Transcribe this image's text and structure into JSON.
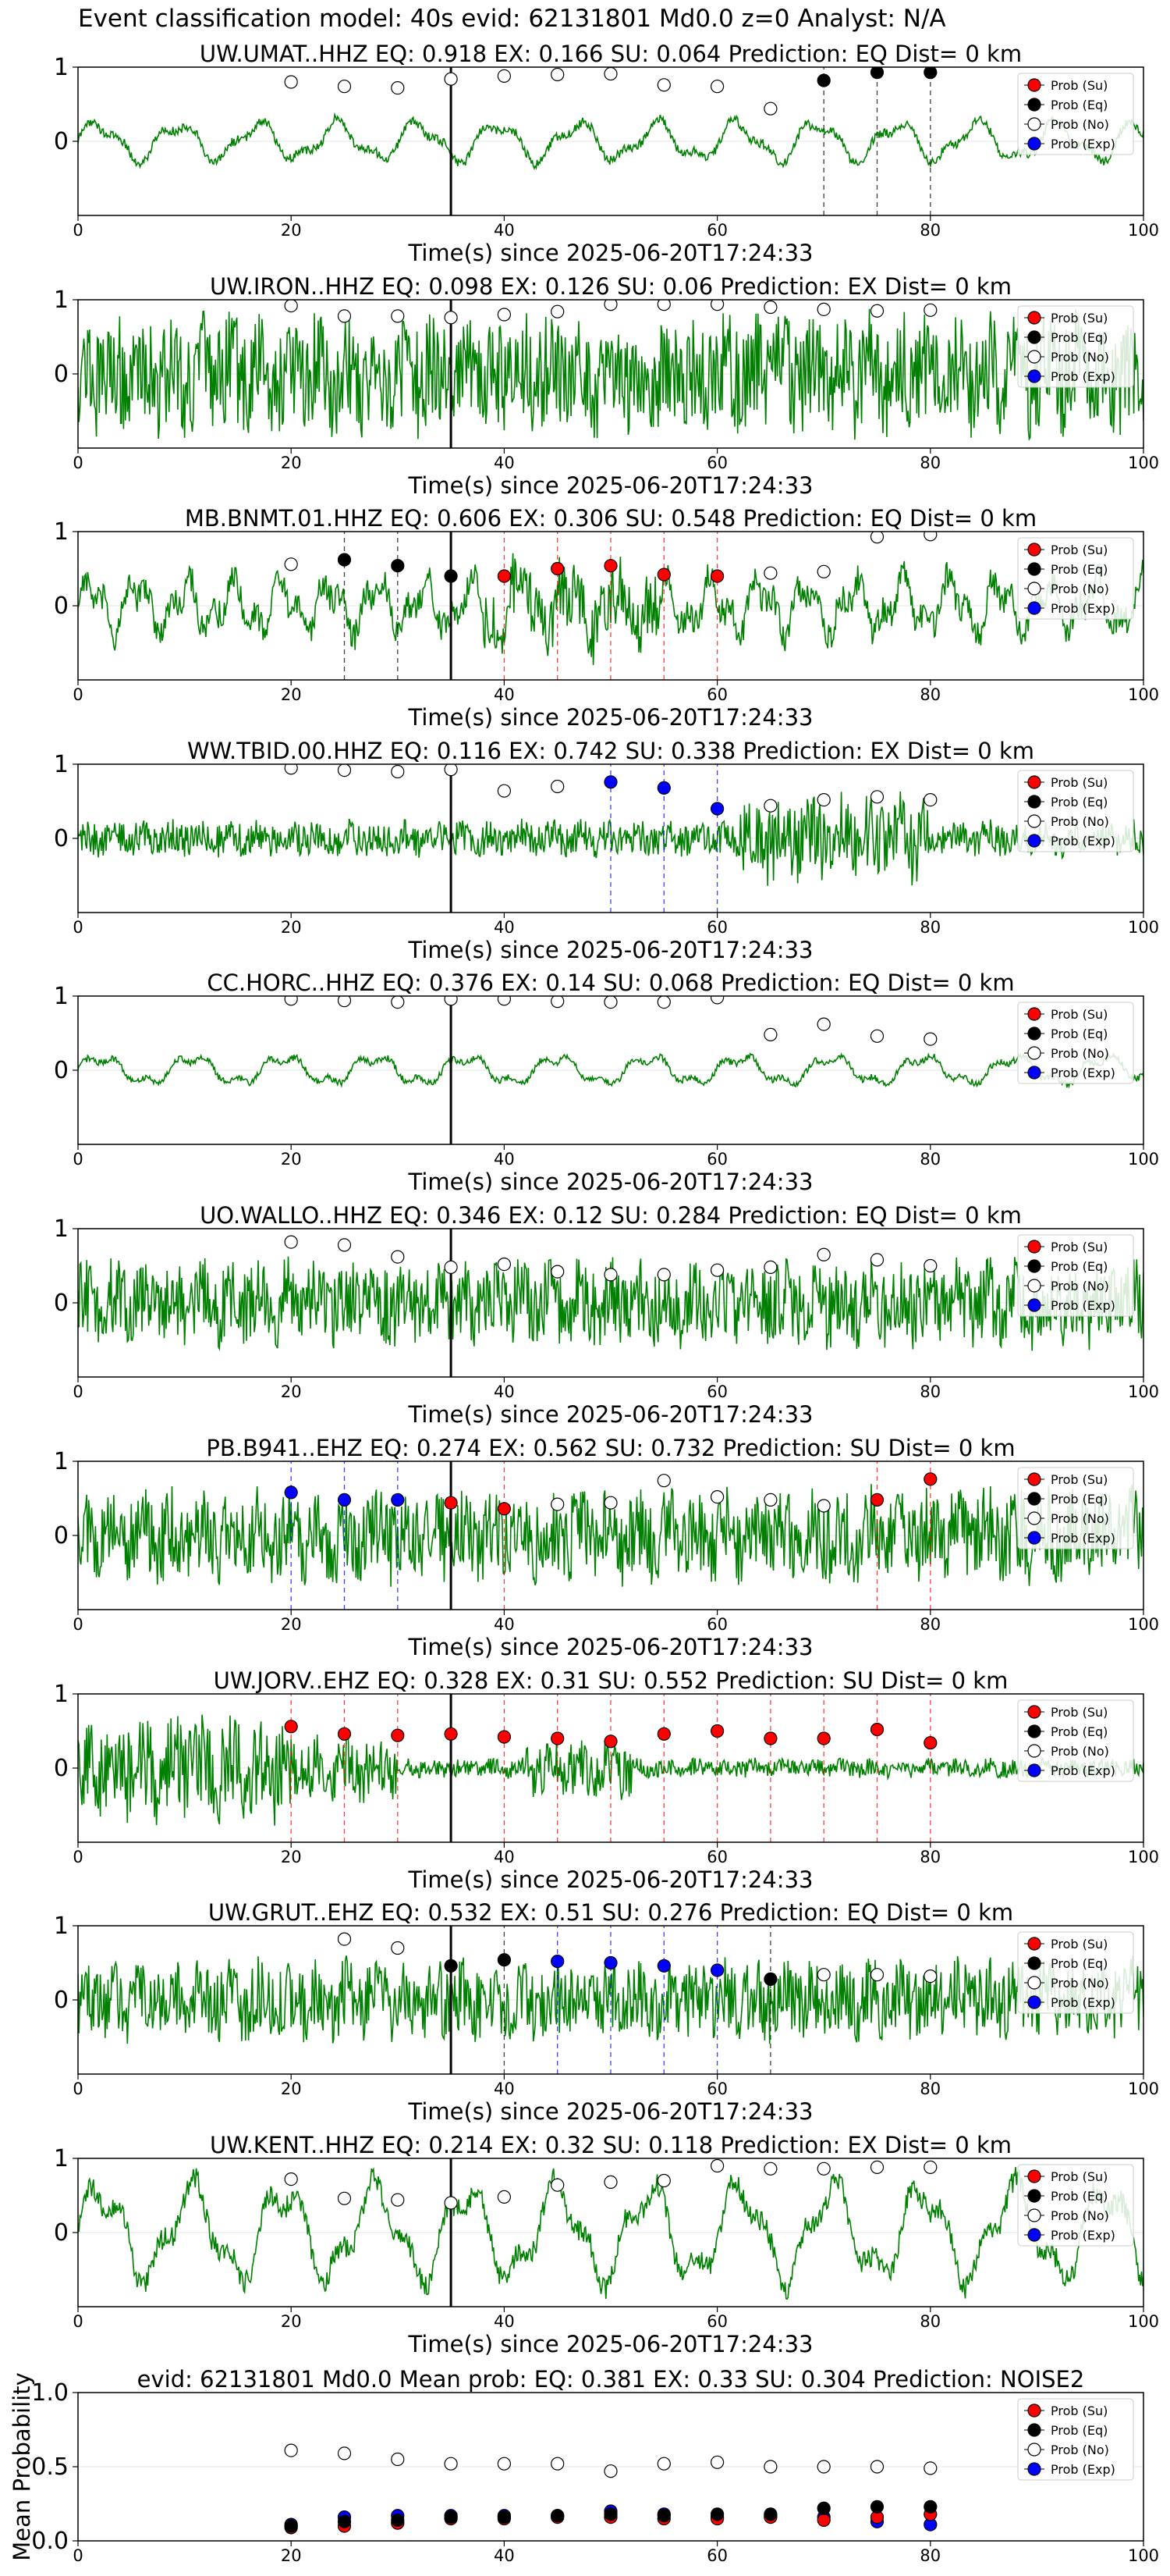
{
  "figure": {
    "suptitle": "Event classification model: 40s evid: 62131801 Md0.0 z=0 Analyst: N/A",
    "xlabel": "Time(s) since 2025-06-20T17:24:33",
    "colors": {
      "trace": "#008000",
      "su": "#ff0000",
      "eq": "#000000",
      "no": "#ffffff",
      "exp": "#0000ff",
      "pick": "#000000"
    }
  },
  "legend": [
    "Prob (Su)",
    "Prob (Eq)",
    "Prob (No)",
    "Prob (Exp)"
  ],
  "chart_data": [
    {
      "type": "line",
      "title": "UW.UMAT..HHZ   EQ: 0.918  EX: 0.166  SU: 0.064   Prediction: EQ    Dist= 0 km",
      "xlabel": "Time(s) since 2025-06-20T17:24:33",
      "xlim": [
        0,
        100
      ],
      "ylim": [
        -1,
        1
      ],
      "xticks": [
        0,
        20,
        40,
        60,
        80,
        100
      ],
      "yticks": [
        0,
        1
      ],
      "waveform": {
        "character": "smooth-oscillation",
        "amplitude": 0.35,
        "color": "#008000"
      },
      "pick_time": 35,
      "x": [
        20,
        25,
        30,
        35,
        40,
        45,
        50,
        55,
        60,
        65,
        70,
        75,
        80
      ],
      "series": [
        {
          "name": "Prob (No)",
          "color": "#ffffff",
          "values": [
            0.8,
            0.74,
            0.72,
            0.84,
            0.88,
            0.9,
            0.91,
            0.76,
            0.74,
            0.44,
            null,
            null,
            null
          ]
        },
        {
          "name": "Prob (Eq)",
          "color": "#000000",
          "values": [
            null,
            null,
            null,
            null,
            null,
            null,
            null,
            null,
            null,
            null,
            0.82,
            0.93,
            0.93
          ]
        }
      ],
      "marker_lines": [
        {
          "x": 70,
          "color": "#000000"
        },
        {
          "x": 75,
          "color": "#000000"
        },
        {
          "x": 80,
          "color": "#000000"
        }
      ],
      "legend": "upper right"
    },
    {
      "type": "line",
      "title": "UW.IRON..HHZ   EQ: 0.098  EX: 0.126  SU: 0.06   Prediction: EX    Dist= 0 km",
      "xlabel": "Time(s) since 2025-06-20T17:24:33",
      "xlim": [
        0,
        100
      ],
      "ylim": [
        -1,
        1
      ],
      "xticks": [
        0,
        20,
        40,
        60,
        80,
        100
      ],
      "yticks": [
        0,
        1
      ],
      "waveform": {
        "character": "dense-noise",
        "amplitude": 0.9,
        "color": "#008000"
      },
      "pick_time": 35,
      "x": [
        20,
        25,
        30,
        35,
        40,
        45,
        50,
        55,
        60,
        65,
        70,
        75,
        80
      ],
      "series": [
        {
          "name": "Prob (No)",
          "color": "#ffffff",
          "values": [
            0.92,
            0.78,
            0.78,
            0.76,
            0.8,
            0.84,
            0.94,
            0.94,
            0.94,
            0.9,
            0.87,
            0.85,
            0.86
          ]
        }
      ],
      "marker_lines": [],
      "legend": "upper right"
    },
    {
      "type": "line",
      "title": "MB.BNMT.01.HHZ   EQ: 0.606  EX: 0.306  SU: 0.548   Prediction: EQ    Dist= 0 km",
      "xlabel": "Time(s) since 2025-06-20T17:24:33",
      "xlim": [
        0,
        100
      ],
      "ylim": [
        -1,
        1
      ],
      "xticks": [
        0,
        20,
        40,
        60,
        80,
        100
      ],
      "yticks": [
        0,
        1
      ],
      "waveform": {
        "character": "mixed-oscillation",
        "amplitude": 0.55,
        "color": "#008000"
      },
      "pick_time": 35,
      "x": [
        20,
        25,
        30,
        35,
        40,
        45,
        50,
        55,
        60,
        65,
        70,
        75,
        80
      ],
      "series": [
        {
          "name": "Prob (No)",
          "color": "#ffffff",
          "values": [
            0.56,
            null,
            null,
            null,
            null,
            null,
            null,
            null,
            null,
            0.44,
            0.46,
            0.93,
            0.96
          ]
        },
        {
          "name": "Prob (Eq)",
          "color": "#000000",
          "values": [
            null,
            0.62,
            0.54,
            0.4,
            null,
            null,
            null,
            null,
            null,
            null,
            null,
            null,
            null
          ]
        },
        {
          "name": "Prob (Su)",
          "color": "#ff0000",
          "values": [
            null,
            null,
            null,
            null,
            0.4,
            0.5,
            0.54,
            0.42,
            0.4,
            null,
            null,
            null,
            null
          ]
        }
      ],
      "marker_lines": [
        {
          "x": 25,
          "color": "#000000"
        },
        {
          "x": 30,
          "color": "#000000"
        },
        {
          "x": 40,
          "color": "#ff0000"
        },
        {
          "x": 45,
          "color": "#ff0000"
        },
        {
          "x": 50,
          "color": "#ff0000"
        },
        {
          "x": 55,
          "color": "#ff0000"
        },
        {
          "x": 60,
          "color": "#ff0000"
        }
      ],
      "legend": "upper right"
    },
    {
      "type": "line",
      "title": "WW.TBID.00.HHZ   EQ: 0.116  EX: 0.742  SU: 0.338   Prediction: EX    Dist= 0 km",
      "xlabel": "Time(s) since 2025-06-20T17:24:33",
      "xlim": [
        0,
        100
      ],
      "ylim": [
        -1,
        1
      ],
      "xticks": [
        0,
        20,
        40,
        60,
        80,
        100
      ],
      "yticks": [
        0,
        1
      ],
      "waveform": {
        "character": "noise-burst-late",
        "amplitude": 0.6,
        "color": "#008000"
      },
      "pick_time": 35,
      "x": [
        20,
        25,
        30,
        35,
        40,
        45,
        50,
        55,
        60,
        65,
        70,
        75,
        80
      ],
      "series": [
        {
          "name": "Prob (No)",
          "color": "#ffffff",
          "values": [
            0.95,
            0.92,
            0.9,
            0.93,
            0.64,
            0.7,
            null,
            null,
            null,
            0.44,
            0.52,
            0.56,
            0.52
          ]
        },
        {
          "name": "Prob (Exp)",
          "color": "#0000ff",
          "values": [
            null,
            null,
            null,
            null,
            null,
            null,
            0.76,
            0.68,
            0.4,
            null,
            null,
            null,
            null
          ]
        }
      ],
      "marker_lines": [
        {
          "x": 50,
          "color": "#0000ff"
        },
        {
          "x": 55,
          "color": "#0000ff"
        },
        {
          "x": 60,
          "color": "#0000ff"
        }
      ],
      "legend": "upper right"
    },
    {
      "type": "line",
      "title": "CC.HORC..HHZ   EQ: 0.376  EX: 0.14  SU: 0.068   Prediction: EQ    Dist= 0 km",
      "xlabel": "Time(s) since 2025-06-20T17:24:33",
      "xlim": [
        0,
        100
      ],
      "ylim": [
        -1,
        1
      ],
      "xticks": [
        0,
        20,
        40,
        60,
        80,
        100
      ],
      "yticks": [
        0,
        1
      ],
      "waveform": {
        "character": "low-oscillation",
        "amplitude": 0.25,
        "color": "#008000"
      },
      "pick_time": 35,
      "x": [
        20,
        25,
        30,
        35,
        40,
        45,
        50,
        55,
        60,
        65,
        70,
        75,
        80
      ],
      "series": [
        {
          "name": "Prob (No)",
          "color": "#ffffff",
          "values": [
            0.96,
            0.94,
            0.92,
            0.96,
            0.96,
            0.93,
            0.92,
            0.92,
            0.98,
            0.48,
            0.62,
            0.46,
            0.42
          ]
        }
      ],
      "marker_lines": [],
      "legend": "upper right"
    },
    {
      "type": "line",
      "title": "UO.WALLO..HHZ   EQ: 0.346  EX: 0.12  SU: 0.284   Prediction: EQ    Dist= 0 km",
      "xlabel": "Time(s) since 2025-06-20T17:24:33",
      "xlim": [
        0,
        100
      ],
      "ylim": [
        -1,
        1
      ],
      "xticks": [
        0,
        20,
        40,
        60,
        80,
        100
      ],
      "yticks": [
        0,
        1
      ],
      "waveform": {
        "character": "dense-noise",
        "amplitude": 0.65,
        "color": "#008000"
      },
      "pick_time": 35,
      "x": [
        20,
        25,
        30,
        35,
        40,
        45,
        50,
        55,
        60,
        65,
        70,
        75,
        80
      ],
      "series": [
        {
          "name": "Prob (No)",
          "color": "#ffffff",
          "values": [
            0.82,
            0.78,
            0.62,
            0.48,
            0.52,
            0.42,
            0.38,
            0.38,
            0.44,
            0.48,
            0.65,
            0.58,
            0.5
          ]
        }
      ],
      "marker_lines": [],
      "legend": "upper right"
    },
    {
      "type": "line",
      "title": "PB.B941..EHZ   EQ: 0.274  EX: 0.562  SU: 0.732   Prediction: SU    Dist= 0 km",
      "xlabel": "Time(s) since 2025-06-20T17:24:33",
      "xlim": [
        0,
        100
      ],
      "ylim": [
        -1,
        1
      ],
      "xticks": [
        0,
        20,
        40,
        60,
        80,
        100
      ],
      "yticks": [
        0,
        1
      ],
      "waveform": {
        "character": "dense-noise",
        "amplitude": 0.7,
        "color": "#008000"
      },
      "pick_time": 35,
      "x": [
        20,
        25,
        30,
        35,
        40,
        45,
        50,
        55,
        60,
        65,
        70,
        75,
        80
      ],
      "series": [
        {
          "name": "Prob (No)",
          "color": "#ffffff",
          "values": [
            null,
            null,
            null,
            null,
            null,
            0.42,
            0.44,
            0.74,
            0.52,
            0.48,
            0.4,
            null,
            null
          ]
        },
        {
          "name": "Prob (Exp)",
          "color": "#0000ff",
          "values": [
            0.58,
            0.48,
            0.48,
            null,
            null,
            null,
            null,
            null,
            null,
            null,
            null,
            null,
            null
          ]
        },
        {
          "name": "Prob (Su)",
          "color": "#ff0000",
          "values": [
            null,
            null,
            null,
            0.44,
            0.36,
            null,
            null,
            null,
            null,
            null,
            null,
            0.48,
            0.76
          ]
        }
      ],
      "marker_lines": [
        {
          "x": 20,
          "color": "#0000ff"
        },
        {
          "x": 25,
          "color": "#0000ff"
        },
        {
          "x": 30,
          "color": "#0000ff"
        },
        {
          "x": 40,
          "color": "#ff0000"
        },
        {
          "x": 75,
          "color": "#ff0000"
        },
        {
          "x": 80,
          "color": "#ff0000"
        }
      ],
      "legend": "upper right"
    },
    {
      "type": "line",
      "title": "UW.JORV..EHZ   EQ: 0.328  EX: 0.31  SU: 0.552   Prediction: SU    Dist= 0 km",
      "xlabel": "Time(s) since 2025-06-20T17:24:33",
      "xlim": [
        0,
        100
      ],
      "ylim": [
        -1,
        1
      ],
      "xticks": [
        0,
        20,
        40,
        60,
        80,
        100
      ],
      "yticks": [
        0,
        1
      ],
      "waveform": {
        "character": "early-burst-decay",
        "amplitude": 0.8,
        "color": "#008000"
      },
      "pick_time": 35,
      "x": [
        20,
        25,
        30,
        35,
        40,
        45,
        50,
        55,
        60,
        65,
        70,
        75,
        80
      ],
      "series": [
        {
          "name": "Prob (Su)",
          "color": "#ff0000",
          "values": [
            0.56,
            0.46,
            0.44,
            0.46,
            0.42,
            0.4,
            0.36,
            0.46,
            0.5,
            0.4,
            0.4,
            0.52,
            0.34
          ]
        }
      ],
      "marker_lines": [
        {
          "x": 20,
          "color": "#ff0000"
        },
        {
          "x": 25,
          "color": "#ff0000"
        },
        {
          "x": 30,
          "color": "#ff0000"
        },
        {
          "x": 40,
          "color": "#ff0000"
        },
        {
          "x": 45,
          "color": "#ff0000"
        },
        {
          "x": 50,
          "color": "#ff0000"
        },
        {
          "x": 55,
          "color": "#ff0000"
        },
        {
          "x": 60,
          "color": "#ff0000"
        },
        {
          "x": 65,
          "color": "#ff0000"
        },
        {
          "x": 70,
          "color": "#ff0000"
        },
        {
          "x": 75,
          "color": "#ff0000"
        },
        {
          "x": 80,
          "color": "#ff0000"
        }
      ],
      "legend": "upper right"
    },
    {
      "type": "line",
      "title": "UW.GRUT..EHZ   EQ: 0.532  EX: 0.51  SU: 0.276   Prediction: EQ    Dist= 0 km",
      "xlabel": "Time(s) since 2025-06-20T17:24:33",
      "xlim": [
        0,
        100
      ],
      "ylim": [
        -1,
        1
      ],
      "xticks": [
        0,
        20,
        40,
        60,
        80,
        100
      ],
      "yticks": [
        0,
        1
      ],
      "waveform": {
        "character": "dense-noise",
        "amplitude": 0.6,
        "color": "#008000"
      },
      "pick_time": 35,
      "x": [
        20,
        25,
        30,
        35,
        40,
        45,
        50,
        55,
        60,
        65,
        70,
        75,
        80
      ],
      "series": [
        {
          "name": "Prob (No)",
          "color": "#ffffff",
          "values": [
            null,
            0.82,
            0.7,
            null,
            null,
            null,
            null,
            null,
            null,
            null,
            0.34,
            0.34,
            0.32
          ]
        },
        {
          "name": "Prob (Eq)",
          "color": "#000000",
          "values": [
            null,
            null,
            null,
            0.46,
            0.54,
            null,
            null,
            null,
            null,
            0.28,
            null,
            null,
            null
          ]
        },
        {
          "name": "Prob (Exp)",
          "color": "#0000ff",
          "values": [
            null,
            null,
            null,
            null,
            null,
            0.52,
            0.5,
            0.46,
            0.4,
            null,
            null,
            null,
            null
          ]
        }
      ],
      "marker_lines": [
        {
          "x": 40,
          "color": "#000000"
        },
        {
          "x": 45,
          "color": "#0000ff"
        },
        {
          "x": 50,
          "color": "#0000ff"
        },
        {
          "x": 55,
          "color": "#0000ff"
        },
        {
          "x": 60,
          "color": "#0000ff"
        },
        {
          "x": 65,
          "color": "#000000"
        }
      ],
      "legend": "upper right"
    },
    {
      "type": "line",
      "title": "UW.KENT..HHZ   EQ: 0.214  EX: 0.32  SU: 0.118   Prediction: EX    Dist= 0 km",
      "xlabel": "Time(s) since 2025-06-20T17:24:33",
      "xlim": [
        0,
        100
      ],
      "ylim": [
        -1,
        1
      ],
      "xticks": [
        0,
        20,
        40,
        60,
        80,
        100
      ],
      "yticks": [
        0,
        1
      ],
      "waveform": {
        "character": "large-oscillation",
        "amplitude": 0.85,
        "color": "#008000"
      },
      "pick_time": 35,
      "x": [
        20,
        25,
        30,
        35,
        40,
        45,
        50,
        55,
        60,
        65,
        70,
        75,
        80
      ],
      "series": [
        {
          "name": "Prob (No)",
          "color": "#ffffff",
          "values": [
            0.72,
            0.46,
            0.44,
            0.4,
            0.48,
            0.64,
            0.68,
            0.7,
            0.9,
            0.86,
            0.86,
            0.88,
            0.88
          ]
        }
      ],
      "marker_lines": [],
      "legend": "upper right"
    },
    {
      "type": "scatter",
      "title": "evid: 62131801  Md0.0   Mean prob:   EQ: 0.381  EX: 0.33  SU: 0.304   Prediction: NOISE2",
      "ylabel": "Mean Probability",
      "xlim": [
        0,
        100
      ],
      "ylim": [
        0,
        1
      ],
      "xticks": [
        0,
        20,
        40,
        60,
        80,
        100
      ],
      "yticks": [
        0.0,
        0.5,
        1.0
      ],
      "ytick_labels": [
        "0.0",
        "0.5",
        "1.0"
      ],
      "x": [
        20,
        25,
        30,
        35,
        40,
        45,
        50,
        55,
        60,
        65,
        70,
        75,
        80
      ],
      "series": [
        {
          "name": "Prob (No)",
          "color": "#ffffff",
          "values": [
            0.61,
            0.59,
            0.55,
            0.52,
            0.52,
            0.52,
            0.47,
            0.52,
            0.53,
            0.5,
            0.5,
            0.5,
            0.49
          ]
        },
        {
          "name": "Prob (Exp)",
          "color": "#0000ff",
          "values": [
            0.11,
            0.16,
            0.17,
            0.17,
            0.17,
            0.17,
            0.2,
            0.18,
            0.16,
            0.17,
            0.16,
            0.13,
            0.11
          ]
        },
        {
          "name": "Prob (Su)",
          "color": "#ff0000",
          "values": [
            0.09,
            0.1,
            0.12,
            0.15,
            0.15,
            0.16,
            0.16,
            0.15,
            0.15,
            0.16,
            0.14,
            0.16,
            0.18
          ]
        },
        {
          "name": "Prob (Eq)",
          "color": "#000000",
          "values": [
            0.1,
            0.13,
            0.14,
            0.16,
            0.16,
            0.17,
            0.18,
            0.17,
            0.18,
            0.18,
            0.22,
            0.23,
            0.23
          ]
        }
      ],
      "legend": "upper right"
    }
  ]
}
